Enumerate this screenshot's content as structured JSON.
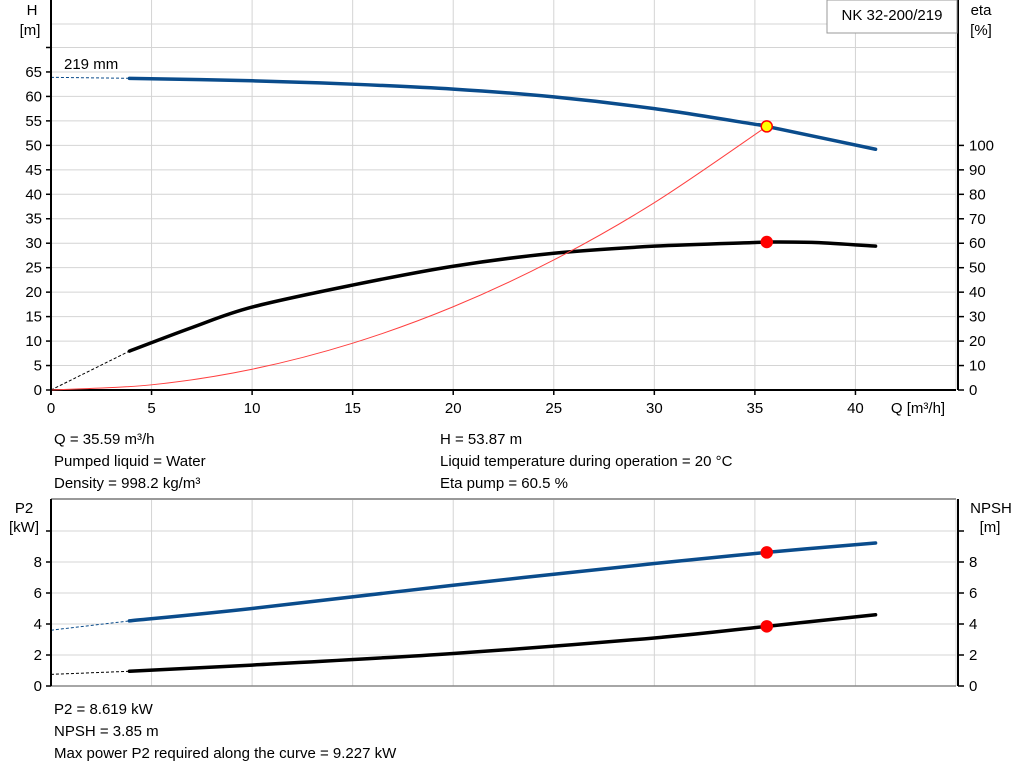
{
  "chart_data": [
    {
      "type": "line",
      "title": "NK 32-200/219",
      "xlabel": "Q [m³/h]",
      "xlim": [
        0,
        45
      ],
      "xticks": [
        0,
        5,
        10,
        15,
        20,
        25,
        30,
        35,
        40
      ],
      "left_axis": {
        "label_top": "H",
        "label_unit": "[m]",
        "ylim": [
          0,
          80
        ],
        "ticks": [
          0,
          5,
          10,
          15,
          20,
          25,
          30,
          35,
          40,
          45,
          50,
          55,
          60,
          65
        ],
        "unlabeled_ticks": [
          70
        ]
      },
      "right_axis": {
        "label_top": "eta",
        "label_unit": "[%]",
        "ylim": [
          0,
          160
        ],
        "ticks": [
          0,
          10,
          20,
          30,
          40,
          50,
          60,
          70,
          80,
          90,
          100
        ]
      },
      "grid": true,
      "curve_label": "219 mm",
      "series": [
        {
          "id": "H",
          "axis": "left",
          "color": "#0a4c8c",
          "x": [
            3.9,
            10,
            15,
            20,
            25,
            30,
            35,
            35.59,
            41
          ],
          "y": [
            63.7,
            63.2,
            62.5,
            61.5,
            59.9,
            57.5,
            54.3,
            53.87,
            49.2
          ],
          "extrapolated": {
            "x": [
              0,
              3.9
            ],
            "y": [
              63.9,
              63.7
            ]
          }
        },
        {
          "id": "eta",
          "axis": "right",
          "color": "#000000",
          "x": [
            3.9,
            7,
            10,
            15,
            20,
            25,
            30,
            35,
            35.59,
            38,
            41
          ],
          "y": [
            15.9,
            25.5,
            33.9,
            42.9,
            50.6,
            55.9,
            58.8,
            60.3,
            60.5,
            60.3,
            58.8
          ],
          "extrapolated": {
            "x": [
              0,
              3.9
            ],
            "y": [
              0,
              15.9
            ]
          }
        },
        {
          "id": "system",
          "axis": "left",
          "color": "#ff4040",
          "x": [
            0,
            5,
            10,
            15,
            20,
            25,
            30,
            35.59
          ],
          "y": [
            0,
            1.06,
            4.25,
            9.57,
            17.01,
            26.58,
            38.28,
            53.87
          ]
        }
      ],
      "operating_points": [
        {
          "series": "H",
          "x": 35.59,
          "y": 53.87,
          "fill": "#ffff00",
          "stroke": "#ff0000"
        },
        {
          "series": "eta",
          "x": 35.59,
          "y": 60.5,
          "fill": "#ff0000",
          "stroke": "#ff0000"
        }
      ]
    },
    {
      "type": "line",
      "xlim": [
        0,
        45
      ],
      "xticks": [
        0,
        5,
        10,
        15,
        20,
        25,
        30,
        35,
        40
      ],
      "left_axis": {
        "label_top": "P2",
        "label_unit": "[kW]",
        "ylim": [
          0,
          12
        ],
        "ticks": [
          0,
          2,
          4,
          6,
          8
        ],
        "unlabeled_ticks": [
          10
        ]
      },
      "right_axis": {
        "label_top": "NPSH",
        "label_unit": "[m]",
        "ylim": [
          0,
          12
        ],
        "ticks": [
          0,
          2,
          4,
          6,
          8
        ],
        "unlabeled_ticks": [
          10
        ]
      },
      "grid": true,
      "series": [
        {
          "id": "P2",
          "axis": "left",
          "color": "#0a4c8c",
          "x": [
            3.9,
            10,
            20,
            30,
            35.59,
            41
          ],
          "y": [
            4.2,
            5.0,
            6.5,
            7.9,
            8.619,
            9.227
          ],
          "extrapolated": {
            "x": [
              0,
              3.9
            ],
            "y": [
              3.6,
              4.2
            ]
          }
        },
        {
          "id": "NPSH",
          "axis": "right",
          "color": "#000000",
          "x": [
            3.9,
            10,
            20,
            30,
            35.59,
            41
          ],
          "y": [
            0.95,
            1.35,
            2.1,
            3.1,
            3.85,
            4.6
          ],
          "extrapolated": {
            "x": [
              0,
              3.9
            ],
            "y": [
              0.75,
              0.95
            ]
          }
        }
      ],
      "operating_points": [
        {
          "series": "P2",
          "x": 35.59,
          "y": 8.619,
          "fill": "#ff0000",
          "stroke": "#ff0000"
        },
        {
          "series": "NPSH",
          "x": 35.59,
          "y": 3.85,
          "fill": "#ff0000",
          "stroke": "#ff0000"
        }
      ]
    }
  ],
  "info_top": {
    "q": "Q = 35.59 m³/h",
    "liquid": "Pumped liquid = Water",
    "density": "Density = 998.2 kg/m³",
    "h": "H = 53.87 m",
    "temp": "Liquid temperature during operation = 20 °C",
    "eta": "Eta pump = 60.5 %"
  },
  "info_bottom": {
    "p2": "P2 = 8.619 kW",
    "npsh": "NPSH = 3.85 m",
    "max_power": "Max power P2 required along the curve = 9.227 kW"
  }
}
